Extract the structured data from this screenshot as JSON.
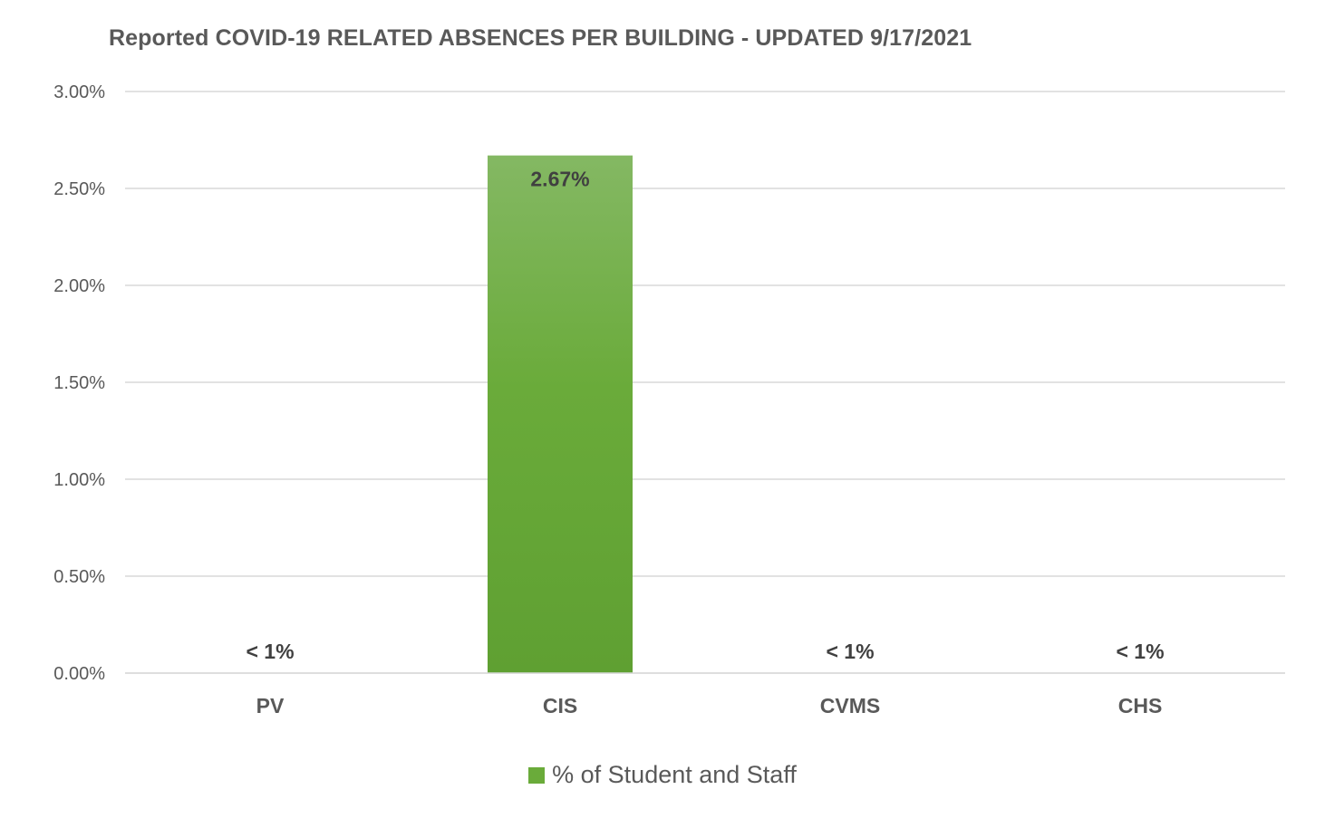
{
  "chart_data": {
    "type": "bar",
    "title": "Reported COVID-19 RELATED ABSENCES PER BUILDING - UPDATED 9/17/2021",
    "xlabel": "",
    "ylabel": "",
    "categories": [
      "PV",
      "CIS",
      "CVMS",
      "CHS"
    ],
    "series": [
      {
        "name": "% of Student and Staff",
        "values": [
          0,
          2.67,
          0,
          0
        ],
        "data_labels": [
          "< 1%",
          "2.67%",
          "< 1%",
          "< 1%"
        ],
        "color": "#6aab3a",
        "color_top": "#84b863",
        "color_bottom": "#5fa032"
      }
    ],
    "ylim": [
      0,
      3
    ],
    "y_ticks": [
      0,
      0.5,
      1,
      1.5,
      2,
      2.5,
      3
    ],
    "y_tick_labels": [
      "0.00%",
      "0.50%",
      "1.00%",
      "1.50%",
      "2.00%",
      "2.50%",
      "3.00%"
    ],
    "grid": true,
    "legend_position": "bottom",
    "gridline_color": "#d9d9d9",
    "text_color": "#595959",
    "label_color": "#404040"
  }
}
